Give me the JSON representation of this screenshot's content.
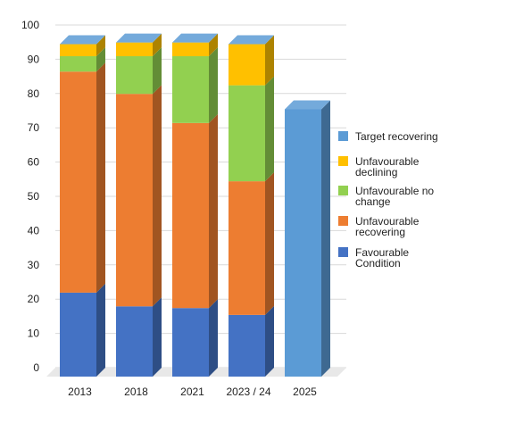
{
  "chart_data": {
    "type": "bar",
    "stacked": true,
    "three_d": true,
    "categories": [
      "2013",
      "2018",
      "2021",
      "2023 / 24",
      "2025"
    ],
    "ylim": [
      0,
      100
    ],
    "yticks": [
      0,
      10,
      20,
      30,
      40,
      50,
      60,
      70,
      80,
      90,
      100
    ],
    "grid": true,
    "legend_position": "right",
    "series": [
      {
        "name": "Favourable Condition",
        "color": "#4472c4",
        "values": [
          24.5,
          20.5,
          20,
          18,
          0
        ]
      },
      {
        "name": "Unfavourable recovering",
        "color": "#ed7d31",
        "values": [
          64.5,
          62,
          54,
          39,
          0
        ]
      },
      {
        "name": "Unfavourable no change",
        "color": "#92d050",
        "values": [
          4.5,
          11,
          19.5,
          28,
          0
        ]
      },
      {
        "name": "Unfavourable declining",
        "color": "#ffc000",
        "values": [
          3.5,
          4,
          4,
          12,
          0
        ]
      },
      {
        "name": "Target recovering",
        "color": "#5b9bd5",
        "values": [
          0,
          0,
          0,
          0,
          78
        ]
      }
    ],
    "legend_order": [
      "Target recovering",
      "Unfavourable declining",
      "Unfavourable no change",
      "Unfavourable recovering",
      "Favourable Condition"
    ],
    "legend_lines": {
      "Target recovering": [
        "Target recovering"
      ],
      "Unfavourable declining": [
        "Unfavourable",
        "declining"
      ],
      "Unfavourable no change": [
        "Unfavourable no",
        "change"
      ],
      "Unfavourable recovering": [
        "Unfavourable",
        "recovering"
      ],
      "Favourable Condition": [
        "Favourable",
        "Condition"
      ]
    }
  }
}
